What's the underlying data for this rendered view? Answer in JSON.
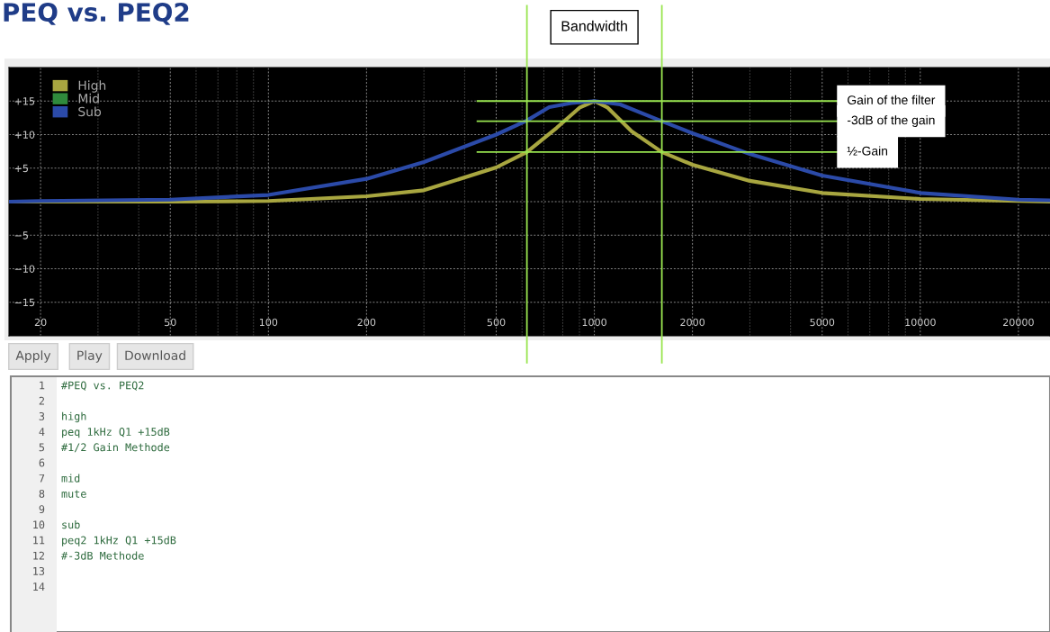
{
  "chart_data": {
    "type": "line",
    "title": "PEQ vs. PEQ2",
    "log": "x",
    "x": [
      16,
      20,
      50,
      100,
      200,
      300,
      500,
      621,
      766,
      900,
      1000,
      1100,
      1300,
      1611,
      2000,
      3000,
      5000,
      10000,
      20000,
      25000
    ],
    "series": [
      {
        "name": "High",
        "color": "#a8a640",
        "values": [
          0.0,
          0.0,
          0.0,
          0.1,
          0.8,
          1.7,
          5.1,
          7.4,
          11,
          14,
          15,
          14,
          10.5,
          7.4,
          5.5,
          3.1,
          1.3,
          0.4,
          0.1,
          0.0
        ]
      },
      {
        "name": "Mid",
        "color": "#2f8a3c",
        "values": [
          null,
          null,
          null,
          null,
          null,
          null,
          null,
          null,
          null,
          null,
          null,
          null,
          null,
          null,
          null,
          null,
          null,
          null,
          null,
          null
        ]
      },
      {
        "name": "Sub",
        "color": "#2b4aa8",
        "x": [
          16,
          20,
          50,
          100,
          200,
          300,
          500,
          621,
          727,
          850,
          1000,
          1200,
          1611,
          2000,
          3000,
          5000,
          10000,
          20000,
          25000
        ],
        "values": [
          0.0,
          0.1,
          0.3,
          1.0,
          3.4,
          5.9,
          10.0,
          12.1,
          14.1,
          14.7,
          15,
          14.5,
          12.0,
          10.2,
          7.1,
          3.9,
          1.3,
          0.3,
          0.2
        ]
      }
    ],
    "xlim": [
      16,
      25000
    ],
    "xticks": [
      20,
      50,
      100,
      200,
      500,
      1000,
      2000,
      5000,
      10000,
      20000
    ],
    "ylim": [
      -20,
      20
    ],
    "yticks": [
      {
        "value": 15,
        "label": "+15"
      },
      {
        "value": 10,
        "label": "+10"
      },
      {
        "value": 5,
        "label": "+5"
      },
      {
        "value": 0,
        "label": null
      },
      {
        "value": -5,
        "label": "−5"
      },
      {
        "value": -10,
        "label": "−10"
      },
      {
        "value": -15,
        "label": "−15"
      }
    ],
    "grid": true,
    "legend": "top left",
    "line_style": "solid",
    "marker": "none",
    "ref_lines": [
      {
        "axis": "x",
        "value": 621,
        "label": null,
        "color": "#99e550"
      },
      {
        "axis": "x",
        "value": 1611,
        "label": null,
        "color": "#99e550"
      },
      {
        "axis": "y",
        "value": 15,
        "label": "Gain of the filter",
        "color": "#99e550"
      },
      {
        "axis": "y",
        "value": 12,
        "label": "-3dB of the gain",
        "color": "#99e550"
      },
      {
        "axis": "y",
        "value": 7.4,
        "label": "½-Gain",
        "color": "#99e550"
      }
    ],
    "annotations": [
      "Bandwidth",
      "Apply",
      "Play",
      "Download",
      "1\t#PEQ vs. PEQ2",
      "2\t",
      "3\thigh",
      "4\tpeq 1kHz Q1 +15dB",
      "5\t#1/2 Gain Methode",
      "6\t",
      "7\tmid",
      "8\tmute",
      "9\t",
      "10\tsub",
      "11\tpeq2 1kHz Q1 +15dB",
      "12\t#-3dB Methode",
      "13\t",
      "14\t"
    ]
  }
}
